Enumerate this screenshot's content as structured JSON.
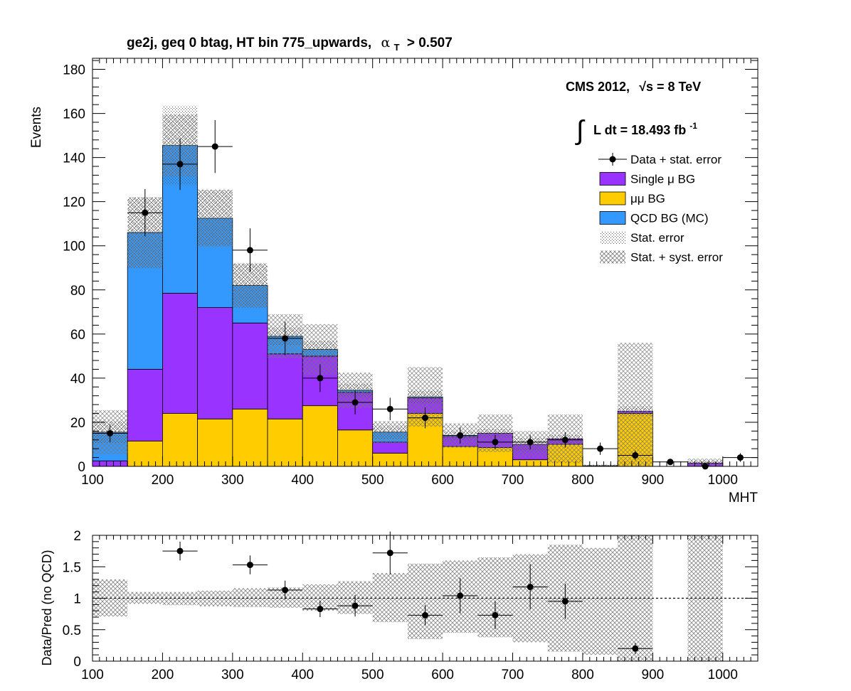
{
  "chart_data": {
    "type": "bar",
    "title": "ge2j, geq 0 btag, HT bin 775_upwards,",
    "title_alpha": "α",
    "title_alpha_sub": "T",
    "title_cut": "> 0.507",
    "xlabel": "MHT",
    "ylabel": "Events",
    "ratio_ylabel": "Data/Pred (no QCD)",
    "xlim": [
      100,
      1050
    ],
    "ylim": [
      0,
      185
    ],
    "ratio_ylim": [
      0,
      2
    ],
    "x_ticks": [
      "100",
      "200",
      "300",
      "400",
      "500",
      "600",
      "700",
      "800",
      "900",
      "1000"
    ],
    "y_ticks": [
      "0",
      "20",
      "40",
      "60",
      "80",
      "100",
      "120",
      "140",
      "160",
      "180"
    ],
    "ratio_ticks": [
      "0",
      "0.5",
      "1",
      "1.5",
      "2"
    ],
    "cms_label": "CMS 2012,",
    "energy_label_sqrt": "√s",
    "energy_label": " = 8 TeV",
    "lumi_integral": "∫",
    "lumi_label": "L dt = 18.493 fb",
    "lumi_exp": "-1",
    "legend_position": "top-right",
    "legend": [
      {
        "label": "Data + stat. error",
        "kind": "marker"
      },
      {
        "label": "Single μ BG",
        "kind": "fill",
        "color": "#9933ff"
      },
      {
        "label": "μμ BG",
        "kind": "fill",
        "color": "#ffcc00"
      },
      {
        "label": "QCD BG (MC)",
        "kind": "fill",
        "color": "#3399ff"
      },
      {
        "label": "Stat. error",
        "kind": "hatch-fine"
      },
      {
        "label": "Stat. + syst. error",
        "kind": "hatch-cross"
      }
    ],
    "bins": [
      [
        100,
        150
      ],
      [
        150,
        200
      ],
      [
        200,
        250
      ],
      [
        250,
        300
      ],
      [
        300,
        350
      ],
      [
        350,
        400
      ],
      [
        400,
        450
      ],
      [
        450,
        500
      ],
      [
        500,
        550
      ],
      [
        550,
        600
      ],
      [
        600,
        650
      ],
      [
        650,
        700
      ],
      [
        700,
        750
      ],
      [
        750,
        800
      ],
      [
        800,
        850
      ],
      [
        850,
        900
      ],
      [
        900,
        950
      ],
      [
        950,
        1000
      ],
      [
        1000,
        1050
      ]
    ],
    "series": [
      {
        "name": "μμ BG",
        "color": "#ffcc00",
        "values": [
          0,
          11.5,
          24,
          21.5,
          26,
          21.5,
          27.5,
          16.5,
          6,
          24,
          9,
          8.5,
          3,
          10,
          0,
          24,
          0,
          0,
          0
        ]
      },
      {
        "name": "Single μ BG",
        "color": "#9933ff",
        "values": [
          2.5,
          32.5,
          54.5,
          50.5,
          39,
          29.5,
          22.5,
          17,
          5,
          7,
          4.5,
          6.5,
          7,
          2.5,
          0.3,
          1,
          0,
          1.5,
          0
        ]
      },
      {
        "name": "QCD BG (MC)",
        "color": "#3399ff",
        "values": [
          13,
          62,
          67,
          40.5,
          17,
          8,
          3,
          1,
          4.5,
          0.5,
          0.5,
          0,
          0,
          0,
          0,
          0,
          0,
          0,
          0
        ]
      }
    ],
    "stat_error": [
      5,
      16,
      18,
      12.5,
      10,
      4,
      4,
      3,
      3,
      3,
      2,
      2,
      3,
      2,
      0.5,
      2,
      0,
      1,
      0
    ],
    "syst_error": [
      10,
      16,
      14,
      13,
      10,
      10,
      11.5,
      8,
      5,
      13.5,
      5.5,
      8.5,
      6,
      11,
      0.5,
      31,
      0,
      2,
      0
    ],
    "data": [
      {
        "x": 125,
        "y": 15,
        "err": 4
      },
      {
        "x": 175,
        "y": 115,
        "err": 10.7
      },
      {
        "x": 225,
        "y": 137,
        "err": 11.7
      },
      {
        "x": 275,
        "y": 145,
        "err": 12
      },
      {
        "x": 325,
        "y": 98,
        "err": 9.9
      },
      {
        "x": 375,
        "y": 58,
        "err": 7.6
      },
      {
        "x": 425,
        "y": 40,
        "err": 6.3
      },
      {
        "x": 475,
        "y": 29,
        "err": 5.4
      },
      {
        "x": 525,
        "y": 26,
        "err": 5.1
      },
      {
        "x": 575,
        "y": 22,
        "err": 4.7
      },
      {
        "x": 625,
        "y": 14,
        "err": 3.7
      },
      {
        "x": 675,
        "y": 11,
        "err": 3.3
      },
      {
        "x": 725,
        "y": 11,
        "err": 3.3
      },
      {
        "x": 775,
        "y": 12,
        "err": 3.5
      },
      {
        "x": 825,
        "y": 8,
        "err": 2.8
      },
      {
        "x": 875,
        "y": 5,
        "err": 2.2
      },
      {
        "x": 925,
        "y": 2,
        "err": 1.4
      },
      {
        "x": 975,
        "y": 0,
        "err": 0
      },
      {
        "x": 1025,
        "y": 4,
        "err": 2
      }
    ],
    "ratio_points": [
      {
        "x": 225,
        "y": 1.75,
        "err": 0.15
      },
      {
        "x": 325,
        "y": 1.53,
        "err": 0.15
      },
      {
        "x": 375,
        "y": 1.13,
        "err": 0.15
      },
      {
        "x": 425,
        "y": 0.83,
        "err": 0.13
      },
      {
        "x": 475,
        "y": 0.88,
        "err": 0.17
      },
      {
        "x": 525,
        "y": 1.72,
        "err": 0.34
      },
      {
        "x": 575,
        "y": 0.73,
        "err": 0.16
      },
      {
        "x": 625,
        "y": 1.04,
        "err": 0.28
      },
      {
        "x": 675,
        "y": 0.73,
        "err": 0.22
      },
      {
        "x": 725,
        "y": 1.18,
        "err": 0.36
      },
      {
        "x": 775,
        "y": 0.95,
        "err": 0.28
      },
      {
        "x": 875,
        "y": 0.2,
        "err": 0.09
      }
    ],
    "ratio_band": [
      {
        "lo": 0.71,
        "hi": 1.3
      },
      {
        "lo": 0.91,
        "hi": 1.1
      },
      {
        "lo": 0.89,
        "hi": 1.1
      },
      {
        "lo": 0.87,
        "hi": 1.12
      },
      {
        "lo": 0.86,
        "hi": 1.16
      },
      {
        "lo": 0.85,
        "hi": 1.17
      },
      {
        "lo": 0.8,
        "hi": 1.22
      },
      {
        "lo": 0.75,
        "hi": 1.27
      },
      {
        "lo": 0.62,
        "hi": 1.4
      },
      {
        "lo": 0.35,
        "hi": 1.55
      },
      {
        "lo": 0.45,
        "hi": 1.6
      },
      {
        "lo": 0.38,
        "hi": 1.65
      },
      {
        "lo": 0.3,
        "hi": 1.7
      },
      {
        "lo": 0.15,
        "hi": 1.85
      },
      {
        "lo": 0.1,
        "hi": 1.8
      },
      {
        "lo": 0.0,
        "hi": 2.0
      },
      null,
      {
        "lo": 0.0,
        "hi": 2.0
      },
      null
    ]
  }
}
